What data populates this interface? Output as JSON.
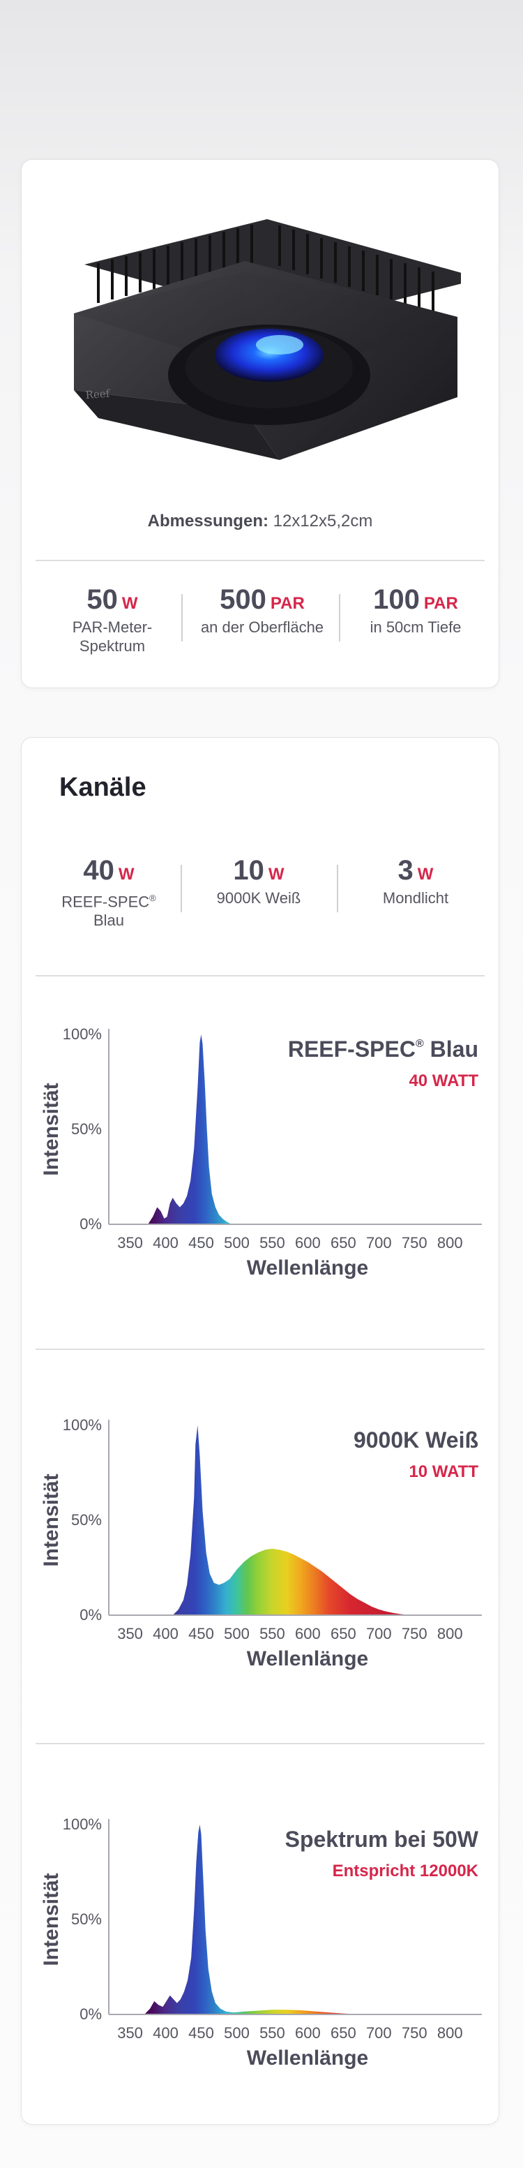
{
  "product": {
    "dimensions_label": "Abmessungen:",
    "dimensions_value": "12x12x5,2cm",
    "stats": [
      {
        "value": "50",
        "unit": "W",
        "desc1": "PAR-Meter-",
        "desc2": "Spektrum"
      },
      {
        "value": "500",
        "unit": "PAR",
        "desc1": "an der Oberfläche",
        "desc2": ""
      },
      {
        "value": "100",
        "unit": "PAR",
        "desc1": "in 50cm Tiefe",
        "desc2": ""
      }
    ]
  },
  "channels": {
    "title": "Kanäle",
    "stats": [
      {
        "value": "40",
        "unit": "W",
        "desc1": "REEF-SPEC",
        "desc1_sup": "®",
        "desc2": "Blau"
      },
      {
        "value": "10",
        "unit": "W",
        "desc1": "9000K Weiß",
        "desc2": ""
      },
      {
        "value": "3",
        "unit": "W",
        "desc1": "Mondlicht",
        "desc2": ""
      }
    ]
  },
  "colors": {
    "accent": "#d6264a",
    "text": "#4b4b5a",
    "axis": "#a8a8b0"
  },
  "chart_data": [
    {
      "type": "area",
      "title": "REEF-SPEC",
      "title_sup": "®",
      "title_suffix": " Blau",
      "subtitle": "40 WATT",
      "xlabel": "Wellenlänge",
      "ylabel": "Intensität",
      "x_ticks": [
        350,
        400,
        450,
        500,
        550,
        600,
        650,
        700,
        750,
        800
      ],
      "y_ticks": [
        "0%",
        "50%",
        "100%"
      ],
      "xlim": [
        320,
        840
      ],
      "ylim": [
        0,
        100
      ],
      "x": [
        375,
        382,
        388,
        393,
        398,
        402,
        406,
        410,
        415,
        420,
        425,
        430,
        435,
        440,
        445,
        448,
        450,
        452,
        455,
        458,
        461,
        465,
        470,
        475,
        480,
        485,
        490,
        495
      ],
      "values": [
        0,
        4,
        9,
        7,
        3,
        4,
        11,
        14,
        11,
        9,
        11,
        15,
        23,
        40,
        72,
        96,
        100,
        95,
        75,
        50,
        30,
        16,
        9,
        5,
        3,
        1.5,
        0.5,
        0
      ]
    },
    {
      "type": "area",
      "title": "9000K Weiß",
      "title_sup": "",
      "title_suffix": "",
      "subtitle": "10 WATT",
      "xlabel": "Wellenlänge",
      "ylabel": "Intensität",
      "x_ticks": [
        350,
        400,
        450,
        500,
        550,
        600,
        650,
        700,
        750,
        800
      ],
      "y_ticks": [
        "0%",
        "50%",
        "100%"
      ],
      "xlim": [
        320,
        840
      ],
      "ylim": [
        0,
        100
      ],
      "x": [
        410,
        418,
        425,
        430,
        435,
        440,
        442,
        445,
        448,
        452,
        457,
        462,
        468,
        475,
        482,
        490,
        500,
        510,
        520,
        530,
        540,
        550,
        560,
        570,
        580,
        590,
        600,
        610,
        620,
        630,
        640,
        650,
        660,
        670,
        680,
        690,
        700,
        710,
        720,
        730,
        740,
        750
      ],
      "values": [
        0,
        3,
        8,
        16,
        32,
        62,
        90,
        100,
        84,
        55,
        33,
        22,
        17,
        16,
        17,
        19,
        24,
        28,
        31,
        33,
        34.5,
        35,
        34.5,
        33.5,
        32,
        30,
        28,
        25.5,
        23,
        20,
        17,
        14,
        11,
        8.5,
        6.5,
        4.5,
        3,
        2,
        1.2,
        0.6,
        0.2,
        0
      ]
    },
    {
      "type": "area",
      "title": "Spektrum bei 50W",
      "title_sup": "",
      "title_suffix": "",
      "subtitle": "Entspricht 12000K",
      "xlabel": "Wellenlänge",
      "ylabel": "Intensität",
      "x_ticks": [
        350,
        400,
        450,
        500,
        550,
        600,
        650,
        700,
        750,
        800
      ],
      "y_ticks": [
        "0%",
        "50%",
        "100%"
      ],
      "xlim": [
        320,
        840
      ],
      "ylim": [
        0,
        100
      ],
      "x": [
        370,
        378,
        384,
        390,
        396,
        401,
        406,
        411,
        416,
        421,
        426,
        431,
        436,
        440,
        443,
        446,
        448,
        450,
        453,
        456,
        460,
        465,
        470,
        477,
        485,
        495,
        510,
        530,
        550,
        570,
        590,
        610,
        630,
        650,
        670,
        690
      ],
      "values": [
        0,
        3,
        7,
        5,
        4,
        7,
        10,
        8,
        6,
        8,
        12,
        18,
        30,
        55,
        80,
        96,
        100,
        95,
        70,
        45,
        24,
        12,
        6,
        3,
        1.5,
        1,
        1.5,
        2,
        2.5,
        2.5,
        2.2,
        1.6,
        1,
        0.5,
        0.2,
        0
      ]
    }
  ]
}
